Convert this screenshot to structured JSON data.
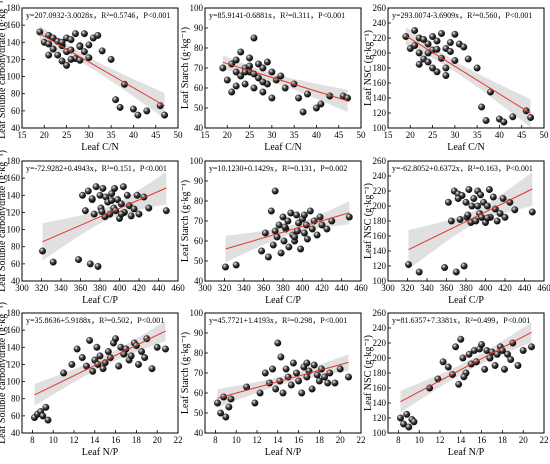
{
  "chart_data": [
    {
      "type": "scatter",
      "row": 0,
      "col": 0,
      "ylabel": "Leaf Soluble carbohydrate (g·kg⁻¹)",
      "xlabel": "Leaf C/N",
      "xlim": [
        15,
        50
      ],
      "ylim": [
        40,
        180
      ],
      "xticks": [
        15,
        20,
        25,
        30,
        35,
        40,
        45,
        50
      ],
      "yticks": [
        40,
        60,
        80,
        100,
        120,
        140,
        160,
        180
      ],
      "equation": "y=207.0932-3.0028x，R²=0.5746，P<0.001",
      "fit": {
        "intercept": 207.0932,
        "slope": -3.0028
      },
      "x": [
        19,
        20,
        21,
        21,
        22,
        22,
        23,
        23,
        24,
        24,
        25,
        25,
        25,
        26,
        26,
        27,
        27,
        28,
        28,
        29,
        29,
        30,
        30,
        31,
        32,
        33,
        35,
        36,
        37,
        38,
        40,
        41,
        43,
        46,
        47,
        21,
        24,
        26,
        28
      ],
      "y": [
        152,
        140,
        138,
        148,
        132,
        145,
        125,
        141,
        118,
        136,
        129,
        145,
        113,
        131,
        143,
        121,
        150,
        136,
        119,
        129,
        150,
        122,
        137,
        145,
        148,
        130,
        120,
        73,
        64,
        91,
        62,
        55,
        60,
        66,
        55,
        125,
        140,
        120,
        135
      ]
    },
    {
      "type": "scatter",
      "row": 0,
      "col": 1,
      "ylabel": "Leaf Starch (g·kg⁻¹)",
      "xlabel": "Leaf C/N",
      "xlim": [
        15,
        50
      ],
      "ylim": [
        40,
        100
      ],
      "xticks": [
        15,
        20,
        25,
        30,
        35,
        40,
        45,
        50
      ],
      "yticks": [
        40,
        50,
        60,
        70,
        80,
        90,
        100
      ],
      "equation": "y=85.9141-0.6881x，R²=0.311，P<0.001",
      "fit": {
        "intercept": 85.9141,
        "slope": -0.6881
      },
      "x": [
        19,
        20,
        21,
        21,
        22,
        22,
        23,
        23,
        24,
        24,
        25,
        25,
        26,
        26,
        27,
        27,
        28,
        28,
        29,
        29,
        30,
        30,
        31,
        32,
        33,
        35,
        36,
        37,
        38,
        40,
        41,
        43,
        46,
        47,
        24,
        26,
        22,
        28,
        25
      ],
      "y": [
        70,
        64,
        72,
        58,
        68,
        74,
        66,
        78,
        70,
        62,
        75,
        68,
        60,
        85,
        72,
        65,
        70,
        58,
        73,
        62,
        68,
        55,
        64,
        66,
        60,
        62,
        55,
        48,
        57,
        50,
        52,
        56,
        56,
        55,
        68,
        67,
        61,
        63,
        71
      ]
    },
    {
      "type": "scatter",
      "row": 0,
      "col": 2,
      "ylabel": "Leaf NSC (g·kg⁻¹)",
      "xlabel": "Leaf C/N",
      "xlim": [
        15,
        50
      ],
      "ylim": [
        100,
        260
      ],
      "xticks": [
        15,
        20,
        25,
        30,
        35,
        40,
        45,
        50
      ],
      "yticks": [
        100,
        120,
        140,
        160,
        180,
        200,
        220,
        240,
        260
      ],
      "equation": "y=293.0074-3.6909x，R²=0.560，P<0.001",
      "fit": {
        "intercept": 293.0074,
        "slope": -3.6909
      },
      "x": [
        19,
        20,
        21,
        21,
        22,
        22,
        23,
        23,
        24,
        24,
        25,
        25,
        26,
        26,
        27,
        27,
        28,
        28,
        29,
        29,
        30,
        30,
        31,
        32,
        33,
        35,
        36,
        37,
        38,
        40,
        41,
        43,
        46,
        47,
        24,
        26,
        22,
        28,
        25
      ],
      "y": [
        222,
        206,
        210,
        230,
        200,
        220,
        192,
        218,
        188,
        212,
        204,
        222,
        175,
        216,
        193,
        226,
        206,
        180,
        202,
        214,
        190,
        225,
        212,
        208,
        192,
        180,
        128,
        110,
        148,
        112,
        108,
        115,
        123,
        114,
        200,
        205,
        185,
        170,
        180
      ]
    },
    {
      "type": "scatter",
      "row": 1,
      "col": 0,
      "ylabel": "Leaf Soluble carbohydrate (g·kg⁻¹)",
      "xlabel": "Leaf C/P",
      "xlim": [
        300,
        460
      ],
      "ylim": [
        40,
        180
      ],
      "xticks": [
        300,
        320,
        340,
        360,
        380,
        400,
        420,
        440,
        460
      ],
      "yticks": [
        40,
        60,
        80,
        100,
        120,
        140,
        160,
        180
      ],
      "equation": "y=-72.9282+0.4943x，R²=0.151，P<0.001",
      "fit": {
        "intercept": -72.9282,
        "slope": 0.4943
      },
      "x": [
        321,
        332,
        358,
        362,
        365,
        368,
        370,
        372,
        374,
        376,
        378,
        380,
        381,
        383,
        385,
        386,
        388,
        390,
        392,
        394,
        395,
        396,
        398,
        400,
        402,
        404,
        405,
        408,
        410,
        412,
        415,
        418,
        420,
        425,
        430,
        448,
        372,
        382,
        392,
        402
      ],
      "y": [
        75,
        62,
        65,
        140,
        122,
        145,
        60,
        135,
        118,
        150,
        57,
        140,
        125,
        148,
        115,
        138,
        132,
        118,
        142,
        125,
        148,
        122,
        135,
        113,
        130,
        150,
        120,
        140,
        128,
        116,
        124,
        140,
        118,
        138,
        125,
        122,
        136,
        121,
        134,
        118
      ]
    },
    {
      "type": "scatter",
      "row": 1,
      "col": 1,
      "ylabel": "Leaf Starch (g·kg⁻¹)",
      "xlabel": "Leaf C/P",
      "xlim": [
        300,
        460
      ],
      "ylim": [
        40,
        100
      ],
      "xticks": [
        300,
        320,
        340,
        360,
        380,
        400,
        420,
        440,
        460
      ],
      "yticks": [
        40,
        50,
        60,
        70,
        80,
        90,
        100
      ],
      "equation": "y=10.1230+0.1429x，R²=0.131，P=0.002",
      "fit": {
        "intercept": 10.123,
        "slope": 0.1429
      },
      "x": [
        321,
        332,
        358,
        362,
        365,
        368,
        370,
        372,
        374,
        376,
        378,
        380,
        381,
        383,
        385,
        386,
        388,
        390,
        392,
        394,
        395,
        396,
        398,
        400,
        402,
        404,
        405,
        408,
        410,
        412,
        415,
        418,
        420,
        425,
        430,
        448,
        372,
        382,
        392,
        402
      ],
      "y": [
        47,
        48,
        55,
        64,
        52,
        75,
        58,
        85,
        62,
        68,
        54,
        72,
        60,
        66,
        70,
        57,
        74,
        63,
        60,
        73,
        65,
        69,
        56,
        71,
        64,
        68,
        61,
        75,
        66,
        70,
        63,
        72,
        68,
        66,
        70,
        72,
        65,
        67,
        62,
        73
      ]
    },
    {
      "type": "scatter",
      "row": 1,
      "col": 2,
      "ylabel": "Leaf NSC (g·kg⁻¹)",
      "xlabel": "Leaf C/P",
      "xlim": [
        300,
        460
      ],
      "ylim": [
        100,
        260
      ],
      "xticks": [
        300,
        320,
        340,
        360,
        380,
        400,
        420,
        440,
        460
      ],
      "yticks": [
        100,
        120,
        140,
        160,
        180,
        200,
        220,
        240,
        260
      ],
      "equation": "y=-62.8052+0.6372x，R²=0.163，P<0.001",
      "fit": {
        "intercept": -62.8052,
        "slope": 0.6372
      },
      "x": [
        321,
        332,
        358,
        362,
        365,
        368,
        370,
        372,
        374,
        376,
        378,
        380,
        381,
        383,
        385,
        386,
        388,
        390,
        392,
        394,
        395,
        396,
        398,
        400,
        402,
        404,
        405,
        408,
        410,
        412,
        415,
        418,
        420,
        425,
        430,
        448,
        372,
        382,
        392,
        402
      ],
      "y": [
        122,
        112,
        118,
        205,
        180,
        220,
        112,
        216,
        182,
        214,
        120,
        205,
        185,
        222,
        178,
        200,
        210,
        180,
        220,
        190,
        215,
        185,
        205,
        178,
        200,
        222,
        185,
        212,
        196,
        180,
        190,
        210,
        185,
        205,
        195,
        192,
        210,
        188,
        200,
        184
      ]
    },
    {
      "type": "scatter",
      "row": 2,
      "col": 0,
      "ylabel": "Leaf Soluble carbohydrate (g·kg⁻¹)",
      "xlabel": "Leaf N/P",
      "xlim": [
        7,
        22
      ],
      "ylim": [
        40,
        180
      ],
      "xticks": [
        8,
        10,
        12,
        14,
        16,
        18,
        20,
        22
      ],
      "yticks": [
        40,
        60,
        80,
        100,
        120,
        140,
        160,
        180
      ],
      "equation": "y=35.8636+5.9188x，R²=0.502，P<0.001",
      "fit": {
        "intercept": 35.8636,
        "slope": 5.9188
      },
      "x": [
        8.2,
        8.5,
        8.8,
        9.0,
        9.3,
        9.5,
        11.0,
        11.8,
        12.3,
        12.8,
        13.2,
        13.5,
        13.8,
        14.0,
        14.2,
        14.5,
        14.8,
        15.0,
        15.3,
        15.5,
        15.8,
        16.0,
        16.3,
        16.5,
        16.8,
        17.0,
        17.3,
        17.5,
        17.8,
        18.0,
        18.2,
        18.5,
        18.8,
        19.0,
        19.5,
        20.0,
        20.8,
        14.3,
        16.8
      ],
      "y": [
        58,
        62,
        65,
        60,
        70,
        55,
        110,
        120,
        138,
        128,
        118,
        148,
        112,
        125,
        140,
        130,
        115,
        122,
        135,
        128,
        145,
        150,
        118,
        140,
        132,
        138,
        125,
        130,
        145,
        142,
        120,
        135,
        128,
        150,
        115,
        140,
        138,
        120,
        132
      ]
    },
    {
      "type": "scatter",
      "row": 2,
      "col": 1,
      "ylabel": "Leaf Starch (g·kg⁻¹)",
      "xlabel": "Leaf N/P",
      "xlim": [
        7,
        22
      ],
      "ylim": [
        40,
        100
      ],
      "xticks": [
        8,
        10,
        12,
        14,
        16,
        18,
        20,
        22
      ],
      "yticks": [
        40,
        50,
        60,
        70,
        80,
        90,
        100
      ],
      "equation": "y=45.7721+1.4193x，R²=0.298，P<0.001",
      "fit": {
        "intercept": 45.7721,
        "slope": 1.4193
      },
      "x": [
        8.2,
        8.5,
        8.8,
        9.0,
        9.3,
        9.5,
        11.0,
        11.8,
        12.3,
        12.8,
        13.2,
        13.5,
        13.8,
        14.0,
        14.2,
        14.5,
        14.8,
        15.0,
        15.3,
        15.5,
        15.8,
        16.0,
        16.3,
        16.5,
        16.8,
        17.0,
        17.3,
        17.5,
        17.8,
        18.0,
        18.2,
        18.5,
        18.8,
        19.0,
        19.5,
        20.0,
        20.8,
        14.3,
        16.8
      ],
      "y": [
        55,
        50,
        58,
        48,
        53,
        57,
        63,
        55,
        60,
        70,
        65,
        72,
        62,
        85,
        66,
        60,
        72,
        68,
        64,
        75,
        70,
        66,
        60,
        73,
        68,
        71,
        62,
        74,
        69,
        66,
        72,
        68,
        65,
        70,
        65,
        72,
        68,
        78,
        75
      ]
    },
    {
      "type": "scatter",
      "row": 2,
      "col": 2,
      "ylabel": "Leaf NSC (g·kg⁻¹)",
      "xlabel": "Leaf N/P",
      "xlim": [
        7,
        22
      ],
      "ylim": [
        100,
        260
      ],
      "xticks": [
        8,
        10,
        12,
        14,
        16,
        18,
        20,
        22
      ],
      "yticks": [
        100,
        120,
        140,
        160,
        180,
        200,
        220,
        240,
        260
      ],
      "equation": "y=81.6357+7.3381x，R²=0.499，P<0.001",
      "fit": {
        "intercept": 81.6357,
        "slope": 7.3381
      },
      "x": [
        8.2,
        8.5,
        8.8,
        9.0,
        9.3,
        9.5,
        11.0,
        11.8,
        12.3,
        12.8,
        13.2,
        13.5,
        13.8,
        14.0,
        14.2,
        14.5,
        14.8,
        15.0,
        15.3,
        15.5,
        15.8,
        16.0,
        16.3,
        16.5,
        16.8,
        17.0,
        17.3,
        17.5,
        17.8,
        18.0,
        18.2,
        18.5,
        18.8,
        19.0,
        19.5,
        20.0,
        20.8,
        14.3,
        16.8
      ],
      "y": [
        120,
        112,
        125,
        108,
        118,
        115,
        160,
        172,
        195,
        188,
        178,
        215,
        165,
        225,
        200,
        180,
        205,
        192,
        210,
        195,
        212,
        218,
        185,
        210,
        200,
        208,
        190,
        205,
        215,
        210,
        185,
        205,
        198,
        220,
        190,
        210,
        215,
        175,
        200
      ]
    }
  ]
}
